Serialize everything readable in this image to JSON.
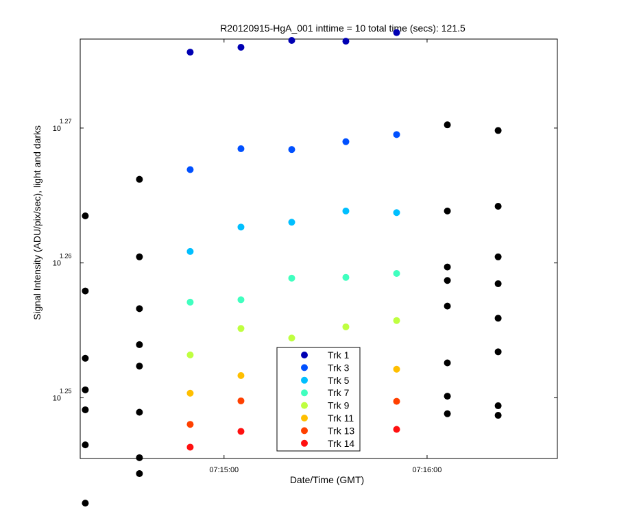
{
  "chart_data": {
    "type": "scatter",
    "title": "R20120915-HgA_001 inttime = 10 total time (secs): 121.5",
    "xlabel": "Date/Time (GMT)",
    "ylabel": "Signal Intensity (ADU/pix/sec), light and darks",
    "x_axis": {
      "unit": "seconds after 07:14:00 GMT",
      "range": [
        17.5,
        158.5
      ],
      "ticks": [
        {
          "value": 60,
          "label": "07:15:00"
        },
        {
          "value": 120,
          "label": "07:16:00"
        }
      ]
    },
    "y_axis": {
      "scale": "log10",
      "exponent_range": [
        1.2455,
        1.2766
      ],
      "ticks": [
        {
          "base": "10",
          "exponent": "1.25"
        },
        {
          "base": "10",
          "exponent": "1.26"
        },
        {
          "base": "10",
          "exponent": "1.27"
        }
      ]
    },
    "legend_position": "bottom-center",
    "series": [
      {
        "name": "Trk 1",
        "color": "#0000b3",
        "points": [
          [
            50,
            1.27563
          ],
          [
            65,
            1.27599
          ],
          [
            80,
            1.2765
          ],
          [
            96,
            1.27644
          ],
          [
            111,
            1.27708
          ]
        ]
      },
      {
        "name": "Trk 3",
        "color": "#0050ff",
        "points": [
          [
            50,
            1.26692
          ],
          [
            65,
            1.26847
          ],
          [
            80,
            1.26841
          ],
          [
            96,
            1.26899
          ],
          [
            111,
            1.26952
          ]
        ]
      },
      {
        "name": "Trk 5",
        "color": "#00bfff",
        "points": [
          [
            50,
            1.26085
          ],
          [
            65,
            1.26266
          ],
          [
            80,
            1.26302
          ],
          [
            96,
            1.26385
          ],
          [
            111,
            1.26373
          ]
        ]
      },
      {
        "name": "Trk 7",
        "color": "#40ffbf",
        "points": [
          [
            50,
            1.25709
          ],
          [
            65,
            1.25727
          ],
          [
            80,
            1.25887
          ],
          [
            96,
            1.25893
          ],
          [
            111,
            1.25922
          ]
        ]
      },
      {
        "name": "Trk 9",
        "color": "#bfff40",
        "points": [
          [
            50,
            1.25318
          ],
          [
            65,
            1.25514
          ],
          [
            80,
            1.25443
          ],
          [
            96,
            1.25526
          ],
          [
            111,
            1.25573
          ]
        ]
      },
      {
        "name": "Trk 11",
        "color": "#ffbf00",
        "points": [
          [
            50,
            1.25034
          ],
          [
            65,
            1.25165
          ],
          [
            80,
            1.25206
          ],
          [
            96,
            1.25224
          ],
          [
            111,
            1.25212
          ]
        ]
      },
      {
        "name": "Trk 13",
        "color": "#ff4000",
        "points": [
          [
            50,
            1.24803
          ],
          [
            65,
            1.24977
          ],
          [
            111,
            1.24974
          ]
        ]
      },
      {
        "name": "Trk 14",
        "color": "#ff1010",
        "points": [
          [
            50,
            1.24634
          ],
          [
            65,
            1.24751
          ],
          [
            111,
            1.24766
          ]
        ]
      },
      {
        "color": "#000000",
        "points": [
          [
            19,
            1.26349
          ],
          [
            19,
            1.25792
          ],
          [
            19,
            1.25293
          ],
          [
            19,
            1.25059
          ],
          [
            19,
            1.24911
          ],
          [
            19,
            1.24651
          ],
          [
            19,
            1.24219
          ],
          [
            19,
            1.24042
          ],
          [
            35,
            1.2662
          ],
          [
            35,
            1.26045
          ],
          [
            35,
            1.25661
          ],
          [
            35,
            1.25394
          ],
          [
            35,
            1.25235
          ],
          [
            35,
            1.24893
          ],
          [
            35,
            1.24556
          ],
          [
            35,
            1.24438
          ],
          [
            126,
            1.27024
          ],
          [
            126,
            1.26385
          ],
          [
            126,
            1.2597
          ],
          [
            126,
            1.2587
          ],
          [
            126,
            1.2568
          ],
          [
            126,
            1.25259
          ],
          [
            126,
            1.25012
          ],
          [
            126,
            1.24882
          ],
          [
            141,
            1.26982
          ],
          [
            141,
            1.2642
          ],
          [
            141,
            1.26045
          ],
          [
            141,
            1.25846
          ],
          [
            141,
            1.2559
          ],
          [
            141,
            1.25341
          ],
          [
            141,
            1.24941
          ],
          [
            141,
            1.2487
          ]
        ]
      }
    ]
  }
}
